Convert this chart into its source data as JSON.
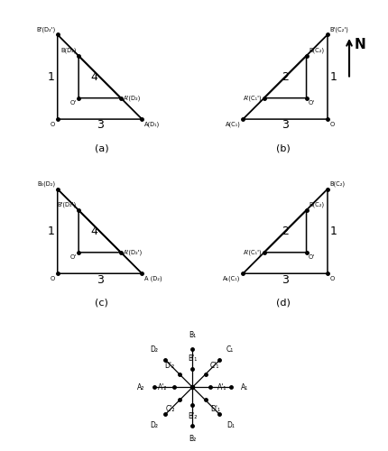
{
  "fig_width": 4.31,
  "fig_height": 5.0,
  "bg_color": "#ffffff",
  "panels": {
    "a": {
      "label": "(a)",
      "num_labels": {
        "side": "1",
        "mid": "4",
        "base": "3"
      },
      "mirror": false,
      "outer": {
        "O": [
          0,
          0
        ],
        "B": [
          0,
          3
        ],
        "A": [
          3,
          0
        ]
      },
      "inner": {
        "Op": [
          0.75,
          0.75
        ],
        "Bi": [
          0.75,
          2.25
        ],
        "Ai": [
          2.25,
          0.75
        ]
      },
      "pt_labels": {
        "O": [
          "O",
          -0.08,
          -0.08
        ],
        "B": [
          "B(D₂)",
          -0.08,
          0.08
        ],
        "A": [
          "A(D₁)",
          0.08,
          -0.08
        ],
        "Btop": [
          "B'(D₂')",
          -0.08,
          0.08
        ],
        "Op": [
          "O'",
          -0.08,
          -0.08
        ],
        "Ai": [
          "A'(D₂)",
          0.08,
          0.0
        ]
      }
    },
    "b": {
      "label": "(b)",
      "num_labels": {
        "side": "1",
        "mid": "2",
        "base": "3"
      },
      "mirror": true,
      "outer": {
        "O": [
          3,
          0
        ],
        "B": [
          3,
          3
        ],
        "A": [
          0,
          0
        ]
      },
      "inner": {
        "Op": [
          2.25,
          0.75
        ],
        "Bi": [
          2.25,
          2.25
        ],
        "Ai": [
          0.75,
          0.75
        ]
      },
      "pt_labels": {
        "O": [
          "O",
          0.08,
          -0.08
        ],
        "B": [
          "B(C₂)",
          0.08,
          0.08
        ],
        "A": [
          "A(C₁)",
          -0.08,
          -0.08
        ],
        "Btop": [
          "B'(C₂')",
          0.08,
          0.08
        ],
        "Op": [
          "O'",
          0.08,
          -0.08
        ],
        "Ai": [
          "A'(C₁')",
          -0.08,
          0.0
        ]
      }
    },
    "c": {
      "label": "(c)",
      "num_labels": {
        "side": "1",
        "mid": "4",
        "base": "3"
      },
      "mirror": false,
      "outer": {
        "O": [
          0,
          0
        ],
        "B": [
          0,
          3
        ],
        "A": [
          3,
          0
        ]
      },
      "inner": {
        "Op": [
          0.75,
          0.75
        ],
        "Bi": [
          0.75,
          2.25
        ],
        "Ai": [
          2.25,
          0.75
        ]
      },
      "pt_labels": {
        "O": [
          "O",
          -0.08,
          -0.08
        ],
        "B": [
          "B'(D₂')",
          -0.08,
          0.08
        ],
        "A": [
          "A (D₂)",
          0.08,
          -0.08
        ],
        "Btop": [
          "B₀(D₂)",
          -0.08,
          0.08
        ],
        "Op": [
          "O'",
          -0.08,
          -0.08
        ],
        "Ai": [
          "A'(D₂')",
          0.08,
          0.0
        ]
      }
    },
    "d": {
      "label": "(d)",
      "num_labels": {
        "side": "1",
        "mid": "2",
        "base": "3"
      },
      "mirror": true,
      "outer": {
        "O": [
          3,
          0
        ],
        "B": [
          3,
          3
        ],
        "A": [
          0,
          0
        ]
      },
      "inner": {
        "Op": [
          2.25,
          0.75
        ],
        "Bi": [
          2.25,
          2.25
        ],
        "Ai": [
          0.75,
          0.75
        ]
      },
      "pt_labels": {
        "O": [
          "O",
          0.08,
          -0.08
        ],
        "B": [
          "B(C₂)",
          0.08,
          0.08
        ],
        "A": [
          "A₁(C₁)",
          -0.08,
          -0.08
        ],
        "Btop": [
          "B(C₂)",
          0.08,
          0.08
        ],
        "Op": [
          "O'",
          0.08,
          -0.08
        ],
        "Ai": [
          "A'(C₁')",
          -0.08,
          0.0
        ]
      }
    }
  },
  "meter": {
    "inner_r": 0.32,
    "outer_r": 0.68,
    "label_r": 0.85,
    "inner_label_r": 0.44,
    "angles_deg": [
      90,
      45,
      0,
      -45,
      -90,
      -135,
      180,
      135
    ],
    "outer_labels": [
      "B₁",
      "C₁",
      "A₁",
      "D₁",
      "B₂",
      "D₂",
      "A₂",
      "D₂"
    ],
    "inner_labels": [
      "B'₁",
      "C'₁",
      "A'₁",
      "D'₁",
      "B'₂",
      "C'₂",
      "A'₂",
      "D'₂"
    ]
  }
}
